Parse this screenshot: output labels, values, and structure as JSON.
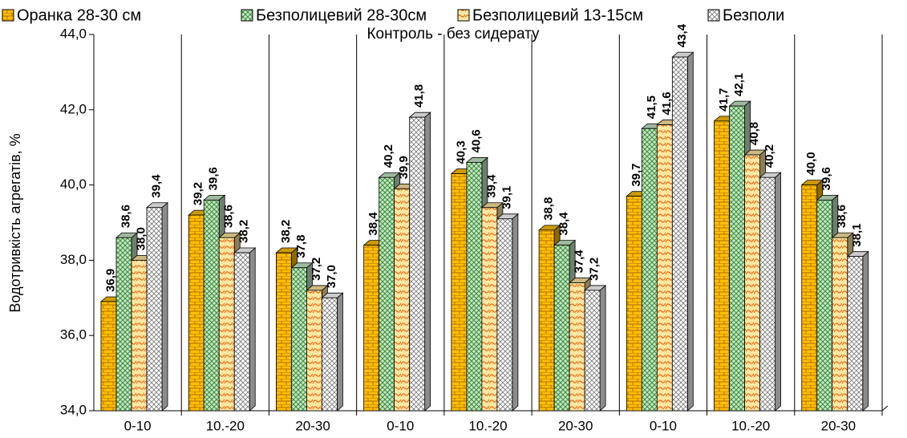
{
  "chart_data": {
    "type": "bar",
    "title": "Контроль - без сидерату",
    "y_label": "Водотривкість агрегатів, %",
    "categories": [
      "0-10",
      "10.-20",
      "20-30",
      "0-10",
      "10.-20",
      "20-30",
      "0-10",
      "10.-20",
      "20-30"
    ],
    "series": [
      {
        "name": "Оранка 28-30 см",
        "color": "#ffc000",
        "values": [
          36.9,
          39.2,
          38.2,
          38.4,
          40.3,
          38.8,
          39.7,
          41.7,
          40.0
        ],
        "value_labels": [
          "36,9",
          "39,2",
          "38,2",
          "38,4",
          "40,3",
          "38,8",
          "39,7",
          "41,7",
          "40,0"
        ]
      },
      {
        "name": "Безполицевий 28-30см",
        "color": "#c6e7c6",
        "values": [
          38.6,
          39.6,
          37.8,
          40.2,
          40.6,
          38.4,
          41.5,
          42.1,
          39.6
        ],
        "value_labels": [
          "38,6",
          "39,6",
          "37,8",
          "40,2",
          "40,6",
          "38,4",
          "41,5",
          "42,1",
          "39,6"
        ]
      },
      {
        "name": "Безполицевий 13-15см",
        "color": "#ffe7a0",
        "values": [
          38.0,
          38.6,
          37.2,
          39.9,
          39.4,
          37.4,
          41.6,
          40.8,
          38.6
        ],
        "value_labels": [
          "38,0",
          "38,6",
          "37,2",
          "39,9",
          "39,4",
          "37,4",
          "41,6",
          "40,8",
          "38,6"
        ]
      },
      {
        "name": "Безполи",
        "color": "#ffffff",
        "values": [
          39.4,
          38.2,
          37.0,
          41.8,
          39.1,
          37.2,
          43.4,
          40.2,
          38.1
        ],
        "value_labels": [
          "39,4",
          "38,2",
          "37,0",
          "41,8",
          "39,1",
          "37,2",
          "43,4",
          "40,2",
          "38,1"
        ]
      }
    ],
    "ylim": [
      34,
      44
    ],
    "yticks": [
      {
        "value": 34,
        "label": "34,0"
      },
      {
        "value": 36,
        "label": "36,0"
      },
      {
        "value": 38,
        "label": "38,0"
      },
      {
        "value": 40,
        "label": "40,0"
      },
      {
        "value": 42,
        "label": "42,0"
      },
      {
        "value": 44,
        "label": "44,0"
      }
    ],
    "legend": "top"
  }
}
